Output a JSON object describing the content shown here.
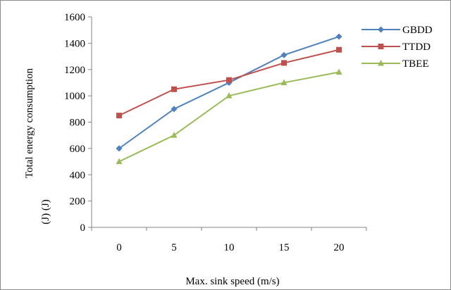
{
  "chart_data": {
    "type": "line",
    "title": "",
    "xlabel": "Max. sink speed (m/s)",
    "ylabel": "Total energy consumption",
    "ylabel_unit": "(J) (J)",
    "categories": [
      "0",
      "5",
      "10",
      "15",
      "20"
    ],
    "ylim": [
      0,
      1600
    ],
    "yticks": [
      0,
      200,
      400,
      600,
      800,
      1000,
      1200,
      1400,
      1600
    ],
    "grid": false,
    "legend_position": "right",
    "series": [
      {
        "name": "GBDD",
        "color": "#4f81bd",
        "marker": "diamond",
        "values": [
          600,
          900,
          1100,
          1310,
          1450
        ]
      },
      {
        "name": "TTDD",
        "color": "#c0504d",
        "marker": "square",
        "values": [
          850,
          1050,
          1120,
          1250,
          1350
        ]
      },
      {
        "name": "TBEE",
        "color": "#9bbb59",
        "marker": "triangle",
        "values": [
          500,
          700,
          1000,
          1100,
          1180
        ]
      }
    ]
  }
}
